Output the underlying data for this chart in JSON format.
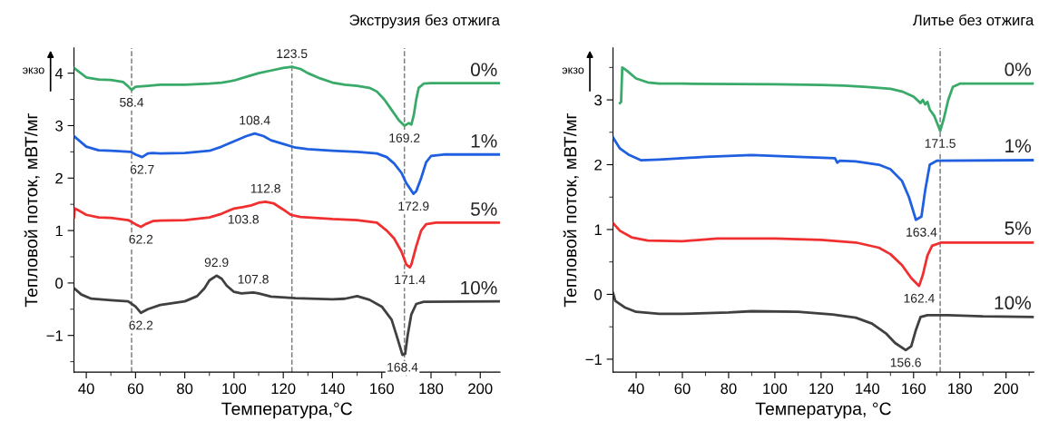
{
  "chart_data": [
    {
      "type": "line",
      "title": "Экструзия без отжига",
      "xlabel": "Температура,°C",
      "ylabel": "Тепловой поток, мВТ/мг",
      "xlim": [
        35,
        208
      ],
      "xticks": [
        40,
        60,
        80,
        100,
        120,
        140,
        160,
        180,
        200
      ],
      "ylim": [
        -1.7,
        4.48
      ],
      "yticks": [
        -1,
        0,
        1,
        2,
        3,
        4
      ],
      "legend": false,
      "grid": false,
      "marker": "none",
      "line_style": "solid",
      "ref_lines": [
        {
          "axis": "x",
          "value": 58.4,
          "color": "#808080",
          "line_style": "dashed"
        },
        {
          "axis": "x",
          "value": 123.5,
          "color": "#808080",
          "line_style": "dashed"
        },
        {
          "axis": "x",
          "value": 169.2,
          "color": "#808080",
          "line_style": "dashed"
        }
      ],
      "series": [
        {
          "name": "0%",
          "color": "#3aaa6a",
          "x": [
            35,
            40,
            45,
            50,
            55,
            57,
            58.4,
            60,
            65,
            70,
            80,
            90,
            95,
            100,
            105,
            110,
            115,
            120,
            123.5,
            127,
            130,
            135,
            140,
            145,
            150,
            155,
            158,
            161,
            164,
            167,
            169.2,
            170,
            171,
            172,
            173,
            174,
            175,
            177,
            180,
            200,
            208
          ],
          "values": [
            4.1,
            3.92,
            3.88,
            3.87,
            3.83,
            3.75,
            3.68,
            3.74,
            3.76,
            3.78,
            3.78,
            3.8,
            3.82,
            3.86,
            3.93,
            4.0,
            4.05,
            4.1,
            4.12,
            4.08,
            4.0,
            3.9,
            3.82,
            3.78,
            3.76,
            3.72,
            3.65,
            3.5,
            3.3,
            3.1,
            3.0,
            3.02,
            3.05,
            3.02,
            3.2,
            3.5,
            3.72,
            3.8,
            3.81,
            3.81,
            3.81
          ]
        },
        {
          "name": "1%",
          "color": "#1f5fe0",
          "x": [
            35,
            40,
            45,
            50,
            58,
            60,
            62.7,
            65,
            67,
            70,
            80,
            90,
            95,
            100,
            105,
            108.4,
            112,
            115,
            120,
            125,
            130,
            140,
            150,
            158,
            162,
            165,
            168,
            170,
            172.9,
            174,
            176,
            178,
            180,
            185,
            208
          ],
          "values": [
            2.8,
            2.6,
            2.53,
            2.52,
            2.5,
            2.45,
            2.4,
            2.47,
            2.48,
            2.47,
            2.48,
            2.52,
            2.6,
            2.7,
            2.8,
            2.85,
            2.8,
            2.72,
            2.65,
            2.58,
            2.55,
            2.52,
            2.5,
            2.47,
            2.4,
            2.28,
            2.1,
            1.9,
            1.7,
            1.75,
            2.0,
            2.3,
            2.42,
            2.45,
            2.45
          ]
        },
        {
          "name": "5%",
          "color": "#f03030",
          "x": [
            35,
            35.3,
            37,
            40,
            45,
            50,
            57,
            60,
            62.2,
            64,
            67,
            70,
            80,
            90,
            95,
            100,
            103.8,
            107,
            110,
            112.8,
            116,
            120,
            123,
            127,
            140,
            150,
            158,
            162,
            165,
            168,
            170,
            171.4,
            172,
            174,
            176,
            178,
            182,
            208
          ],
          "values": [
            1.25,
            1.42,
            1.38,
            1.3,
            1.25,
            1.24,
            1.2,
            1.12,
            1.07,
            1.12,
            1.18,
            1.19,
            1.2,
            1.25,
            1.32,
            1.42,
            1.45,
            1.48,
            1.53,
            1.55,
            1.52,
            1.4,
            1.3,
            1.26,
            1.22,
            1.2,
            1.15,
            1.0,
            0.85,
            0.6,
            0.35,
            0.3,
            0.35,
            0.7,
            1.0,
            1.12,
            1.15,
            1.15
          ]
        },
        {
          "name": "10%",
          "color": "#404040",
          "x": [
            35,
            38,
            42,
            50,
            57,
            60,
            62.2,
            65,
            70,
            80,
            85,
            88,
            90,
            92.9,
            95,
            97,
            100,
            103,
            107.8,
            110,
            115,
            125,
            140,
            145,
            150,
            155,
            160,
            164,
            166,
            168.4,
            169.5,
            170.5,
            172,
            174,
            177,
            208
          ],
          "values": [
            -0.1,
            -0.22,
            -0.3,
            -0.33,
            -0.35,
            -0.45,
            -0.57,
            -0.5,
            -0.42,
            -0.35,
            -0.25,
            -0.1,
            0.05,
            0.14,
            0.08,
            -0.05,
            -0.17,
            -0.2,
            -0.18,
            -0.2,
            -0.26,
            -0.29,
            -0.31,
            -0.3,
            -0.25,
            -0.32,
            -0.45,
            -0.7,
            -1.0,
            -1.37,
            -1.35,
            -1.0,
            -0.6,
            -0.4,
            -0.36,
            -0.35
          ]
        }
      ],
      "annotations": [
        "экзо",
        {
          "text": "58.4",
          "x": 58.4,
          "y": 3.68
        },
        {
          "text": "123.5",
          "x": 123.5,
          "y": 4.12
        },
        {
          "text": "169.2",
          "x": 169.2,
          "y": 3.0
        },
        {
          "text": "62.7",
          "x": 62.7,
          "y": 2.4
        },
        {
          "text": "108.4",
          "x": 108.4,
          "y": 2.85
        },
        {
          "text": "172.9",
          "x": 172.9,
          "y": 1.7
        },
        {
          "text": "62.2",
          "x": 62.2,
          "y": 1.07
        },
        {
          "text": "103.8",
          "x": 103.8,
          "y": 1.45
        },
        {
          "text": "112.8",
          "x": 112.8,
          "y": 1.55
        },
        {
          "text": "171.4",
          "x": 171.4,
          "y": 0.3
        },
        {
          "text": "62.2",
          "x": 62.2,
          "y": -0.57
        },
        {
          "text": "92.9",
          "x": 92.9,
          "y": 0.14
        },
        {
          "text": "107.8",
          "x": 107.8,
          "y": -0.18
        },
        {
          "text": "168.4",
          "x": 168.4,
          "y": -1.37
        }
      ]
    },
    {
      "type": "line",
      "title": "Литье без отжига",
      "xlabel": "Температура, °C",
      "ylabel": "Тепловой поток, мВТ/мг",
      "xlim": [
        30,
        212
      ],
      "xticks": [
        40,
        60,
        80,
        100,
        120,
        140,
        160,
        180,
        200
      ],
      "ylim": [
        -1.2,
        3.8
      ],
      "yticks": [
        -1,
        0,
        1,
        2,
        3
      ],
      "legend": false,
      "grid": false,
      "marker": "none",
      "line_style": "solid",
      "ref_lines": [
        {
          "axis": "x",
          "value": 171.5,
          "color": "#808080",
          "line_style": "dashed"
        }
      ],
      "series": [
        {
          "name": "0%",
          "color": "#3aaa6a",
          "x": [
            33,
            33.5,
            34,
            36,
            40,
            45,
            50,
            60,
            100,
            120,
            130,
            140,
            150,
            155,
            160,
            163,
            164,
            165,
            166,
            167,
            169,
            171.5,
            173,
            175,
            177,
            180,
            212
          ],
          "values": [
            2.95,
            2.97,
            3.5,
            3.45,
            3.33,
            3.27,
            3.25,
            3.25,
            3.24,
            3.23,
            3.22,
            3.2,
            3.17,
            3.13,
            3.05,
            2.95,
            3.0,
            2.93,
            2.97,
            2.85,
            2.75,
            2.52,
            2.7,
            3.0,
            3.2,
            3.25,
            3.25
          ]
        },
        {
          "name": "1%",
          "color": "#1f5fe0",
          "x": [
            30,
            33,
            37,
            42,
            50,
            70,
            90,
            110,
            126,
            127,
            128,
            135,
            145,
            150,
            155,
            158,
            161,
            163.4,
            165,
            167,
            170,
            212
          ],
          "values": [
            2.42,
            2.25,
            2.15,
            2.07,
            2.08,
            2.12,
            2.15,
            2.12,
            2.1,
            2.03,
            2.06,
            2.05,
            2.0,
            1.93,
            1.75,
            1.5,
            1.15,
            1.2,
            1.6,
            2.0,
            2.06,
            2.07
          ]
        },
        {
          "name": "5%",
          "color": "#f03030",
          "x": [
            30,
            33,
            38,
            45,
            60,
            75,
            100,
            120,
            135,
            145,
            150,
            155,
            159,
            162.4,
            164,
            166,
            168,
            172,
            212
          ],
          "values": [
            1.1,
            0.98,
            0.88,
            0.83,
            0.82,
            0.86,
            0.86,
            0.84,
            0.8,
            0.72,
            0.62,
            0.45,
            0.25,
            0.13,
            0.3,
            0.6,
            0.75,
            0.8,
            0.8
          ]
        },
        {
          "name": "10%",
          "color": "#404040",
          "x": [
            30,
            31,
            35,
            40,
            50,
            60,
            80,
            90,
            110,
            125,
            135,
            142,
            148,
            152,
            156.6,
            159,
            161,
            163,
            166,
            175,
            190,
            212
          ],
          "values": [
            0.02,
            -0.1,
            -0.2,
            -0.27,
            -0.3,
            -0.3,
            -0.28,
            -0.26,
            -0.27,
            -0.31,
            -0.36,
            -0.45,
            -0.6,
            -0.75,
            -0.86,
            -0.8,
            -0.55,
            -0.35,
            -0.32,
            -0.32,
            -0.34,
            -0.35
          ]
        }
      ],
      "annotations": [
        "экзо",
        {
          "text": "171.5",
          "x": 171.5,
          "y": 2.52
        },
        {
          "text": "163.4",
          "x": 163.4,
          "y": 1.15
        },
        {
          "text": "162.4",
          "x": 162.4,
          "y": 0.13
        },
        {
          "text": "156.6",
          "x": 156.6,
          "y": -0.86
        }
      ]
    }
  ]
}
